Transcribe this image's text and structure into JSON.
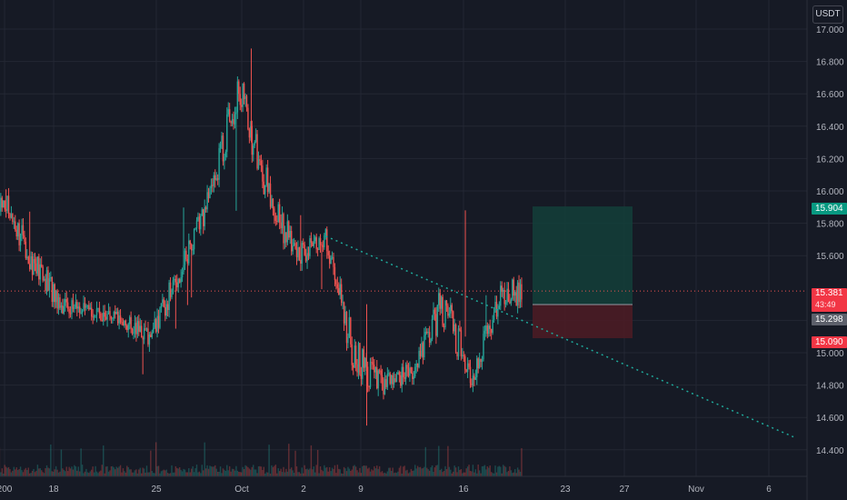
{
  "currency": "USDT",
  "colors": {
    "background": "#161a25",
    "grid": "#232733",
    "up": "#26a69a",
    "down": "#ef5350",
    "target_zone": "#13403a",
    "stop_zone": "#4a1c25",
    "trendline": "#1fa99b",
    "axis_text": "#b2b5be"
  },
  "price_tags": {
    "target": "15.904",
    "current": "15.381",
    "countdown": "43:49",
    "entry": "15.298",
    "stop": "15.090"
  },
  "chart_data": {
    "type": "candlestick",
    "x_ticks": [
      "200",
      "18",
      "25",
      "Oct",
      "2",
      "9",
      "16",
      "23",
      "27",
      "Nov",
      "6"
    ],
    "y_ticks": [
      "17.000",
      "16.800",
      "16.600",
      "16.400",
      "16.200",
      "16.000",
      "15.800",
      "15.600",
      "15.200",
      "15.000",
      "14.800",
      "14.600",
      "14.400"
    ],
    "ylim": [
      14.32,
      17.02
    ],
    "x": [
      "Sep 11",
      "Sep 13",
      "Sep 15",
      "Sep 17",
      "Sep 19",
      "Sep 21",
      "Sep 23",
      "Sep 25",
      "Sep 27",
      "Sep 29",
      "Oct 1",
      "Oct 3",
      "Oct 5",
      "Oct 7",
      "Oct 9",
      "Oct 11",
      "Oct 13",
      "Oct 15",
      "Oct 17",
      "Oct 19"
    ],
    "close": [
      15.35,
      15.62,
      15.95,
      15.55,
      15.3,
      15.25,
      15.2,
      15.1,
      15.5,
      15.95,
      16.65,
      16.0,
      15.6,
      15.7,
      14.95,
      14.8,
      14.9,
      15.3,
      14.85,
      15.38
    ],
    "high": [
      15.6,
      15.9,
      16.02,
      15.85,
      15.55,
      15.35,
      15.35,
      15.25,
      15.85,
      16.2,
      16.88,
      16.55,
      15.85,
      15.85,
      15.55,
      15.05,
      15.1,
      15.88,
      15.2,
      15.52
    ],
    "low": [
      15.05,
      15.3,
      15.5,
      15.2,
      15.05,
      15.1,
      15.0,
      14.82,
      15.2,
      15.55,
      15.9,
      15.55,
      15.35,
      15.4,
      14.52,
      14.62,
      14.62,
      14.9,
      14.6,
      14.8
    ],
    "position": {
      "target": 15.904,
      "entry": 15.298,
      "stop": 15.09
    },
    "trendline": {
      "from": [
        "Oct 7",
        15.72
      ],
      "to": [
        "Nov 8",
        14.48
      ]
    }
  }
}
